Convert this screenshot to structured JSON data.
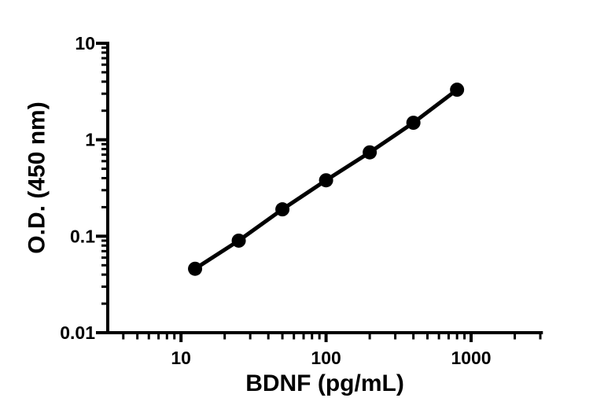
{
  "figure": {
    "background_color": "#ffffff",
    "ink_color": "#000000"
  },
  "chart_data": {
    "type": "line",
    "title": "",
    "xlabel": "BDNF (pg/mL)",
    "ylabel": "O.D. (450 nm)",
    "x_scale": "log",
    "y_scale": "log",
    "xlim": [
      3.125,
      3125
    ],
    "ylim": [
      0.01,
      10
    ],
    "x_major_ticks": [
      10,
      100,
      1000
    ],
    "x_tick_labels": [
      "10",
      "100",
      "1000"
    ],
    "y_major_ticks": [
      0.01,
      0.1,
      1,
      10
    ],
    "y_tick_labels": [
      "0.01",
      "0.1",
      "1",
      "10"
    ],
    "grid": false,
    "legend": "none",
    "series": [
      {
        "marker": "filled-circle",
        "line": "solid",
        "x": [
          12.5,
          25,
          50,
          100,
          200,
          400,
          800
        ],
        "y": [
          0.046,
          0.09,
          0.19,
          0.38,
          0.74,
          1.5,
          3.3
        ]
      }
    ]
  }
}
